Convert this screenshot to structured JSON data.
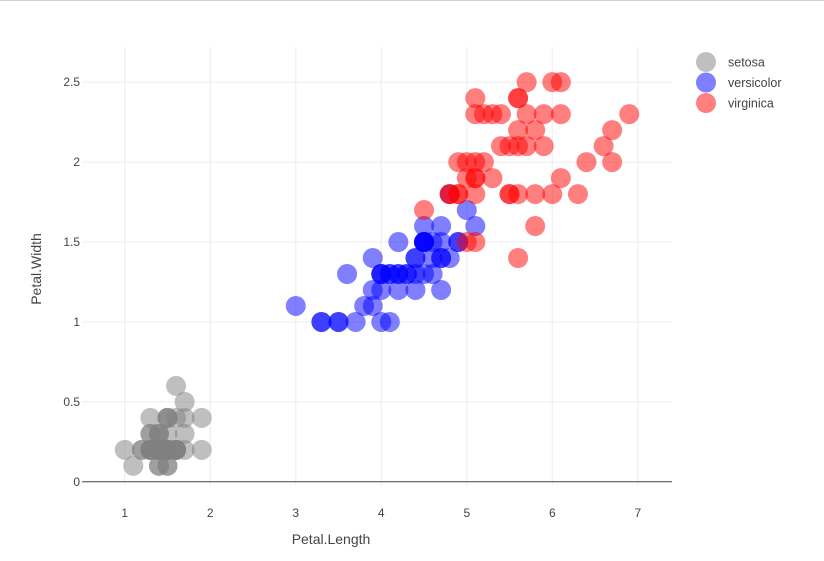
{
  "chart_data": {
    "type": "scatter",
    "title": "",
    "xlabel": "Petal.Length",
    "ylabel": "Petal.Width",
    "xlim": [
      0.5,
      7.4
    ],
    "ylim": [
      -0.02,
      2.72
    ],
    "xticks": [
      1,
      2,
      3,
      4,
      5,
      6,
      7
    ],
    "yticks": [
      0,
      0.5,
      1,
      1.5,
      2,
      2.5
    ],
    "ytick_labels": [
      "0",
      "0.5",
      "1",
      "1.5",
      "2",
      "2.5"
    ],
    "grid": true,
    "legend_position": "top-right",
    "marker_opacity": 0.5,
    "series": [
      {
        "name": "setosa",
        "color": "#808080",
        "points": [
          [
            1.4,
            0.2
          ],
          [
            1.4,
            0.2
          ],
          [
            1.3,
            0.2
          ],
          [
            1.5,
            0.2
          ],
          [
            1.4,
            0.2
          ],
          [
            1.7,
            0.4
          ],
          [
            1.4,
            0.3
          ],
          [
            1.5,
            0.2
          ],
          [
            1.4,
            0.2
          ],
          [
            1.5,
            0.1
          ],
          [
            1.5,
            0.2
          ],
          [
            1.6,
            0.2
          ],
          [
            1.4,
            0.1
          ],
          [
            1.1,
            0.1
          ],
          [
            1.2,
            0.2
          ],
          [
            1.5,
            0.4
          ],
          [
            1.3,
            0.4
          ],
          [
            1.4,
            0.3
          ],
          [
            1.7,
            0.3
          ],
          [
            1.5,
            0.3
          ],
          [
            1.7,
            0.2
          ],
          [
            1.5,
            0.4
          ],
          [
            1.0,
            0.2
          ],
          [
            1.7,
            0.5
          ],
          [
            1.9,
            0.2
          ],
          [
            1.6,
            0.2
          ],
          [
            1.6,
            0.4
          ],
          [
            1.5,
            0.2
          ],
          [
            1.4,
            0.2
          ],
          [
            1.6,
            0.2
          ],
          [
            1.6,
            0.2
          ],
          [
            1.5,
            0.4
          ],
          [
            1.5,
            0.1
          ],
          [
            1.4,
            0.2
          ],
          [
            1.5,
            0.2
          ],
          [
            1.2,
            0.2
          ],
          [
            1.3,
            0.2
          ],
          [
            1.4,
            0.1
          ],
          [
            1.3,
            0.2
          ],
          [
            1.5,
            0.2
          ],
          [
            1.3,
            0.3
          ],
          [
            1.3,
            0.3
          ],
          [
            1.3,
            0.2
          ],
          [
            1.6,
            0.6
          ],
          [
            1.9,
            0.4
          ],
          [
            1.4,
            0.3
          ],
          [
            1.6,
            0.2
          ],
          [
            1.4,
            0.2
          ],
          [
            1.5,
            0.2
          ],
          [
            1.4,
            0.2
          ]
        ]
      },
      {
        "name": "versicolor",
        "color": "#0000ff",
        "points": [
          [
            4.7,
            1.4
          ],
          [
            4.5,
            1.5
          ],
          [
            4.9,
            1.5
          ],
          [
            4.0,
            1.3
          ],
          [
            4.6,
            1.5
          ],
          [
            4.5,
            1.3
          ],
          [
            4.7,
            1.6
          ],
          [
            3.3,
            1.0
          ],
          [
            4.6,
            1.3
          ],
          [
            3.9,
            1.4
          ],
          [
            3.5,
            1.0
          ],
          [
            4.2,
            1.5
          ],
          [
            4.0,
            1.0
          ],
          [
            4.7,
            1.4
          ],
          [
            3.6,
            1.3
          ],
          [
            4.4,
            1.4
          ],
          [
            4.5,
            1.5
          ],
          [
            4.1,
            1.0
          ],
          [
            4.5,
            1.5
          ],
          [
            3.9,
            1.1
          ],
          [
            4.8,
            1.8
          ],
          [
            4.0,
            1.3
          ],
          [
            4.9,
            1.5
          ],
          [
            4.7,
            1.2
          ],
          [
            4.3,
            1.3
          ],
          [
            4.4,
            1.4
          ],
          [
            4.8,
            1.4
          ],
          [
            5.0,
            1.7
          ],
          [
            4.5,
            1.5
          ],
          [
            3.5,
            1.0
          ],
          [
            3.8,
            1.1
          ],
          [
            3.7,
            1.0
          ],
          [
            3.9,
            1.2
          ],
          [
            5.1,
            1.6
          ],
          [
            4.5,
            1.5
          ],
          [
            4.5,
            1.6
          ],
          [
            4.7,
            1.5
          ],
          [
            4.4,
            1.3
          ],
          [
            4.1,
            1.3
          ],
          [
            4.0,
            1.3
          ],
          [
            4.4,
            1.2
          ],
          [
            4.6,
            1.4
          ],
          [
            4.0,
            1.2
          ],
          [
            3.3,
            1.0
          ],
          [
            4.2,
            1.3
          ],
          [
            4.2,
            1.2
          ],
          [
            4.2,
            1.3
          ],
          [
            4.3,
            1.3
          ],
          [
            3.0,
            1.1
          ],
          [
            4.1,
            1.3
          ]
        ]
      },
      {
        "name": "virginica",
        "color": "#ff0000",
        "points": [
          [
            6.0,
            2.5
          ],
          [
            5.1,
            1.9
          ],
          [
            5.9,
            2.1
          ],
          [
            5.6,
            1.8
          ],
          [
            5.8,
            2.2
          ],
          [
            6.6,
            2.1
          ],
          [
            4.5,
            1.7
          ],
          [
            6.3,
            1.8
          ],
          [
            5.8,
            1.8
          ],
          [
            6.1,
            2.5
          ],
          [
            5.1,
            2.0
          ],
          [
            5.3,
            1.9
          ],
          [
            5.5,
            2.1
          ],
          [
            5.0,
            2.0
          ],
          [
            5.1,
            2.4
          ],
          [
            5.3,
            2.3
          ],
          [
            5.5,
            1.8
          ],
          [
            6.7,
            2.2
          ],
          [
            6.9,
            2.3
          ],
          [
            5.0,
            1.5
          ],
          [
            5.7,
            2.3
          ],
          [
            4.9,
            2.0
          ],
          [
            6.7,
            2.0
          ],
          [
            4.9,
            1.8
          ],
          [
            5.7,
            2.1
          ],
          [
            6.0,
            1.8
          ],
          [
            4.8,
            1.8
          ],
          [
            4.9,
            1.8
          ],
          [
            5.6,
            2.1
          ],
          [
            5.8,
            1.6
          ],
          [
            6.1,
            1.9
          ],
          [
            6.4,
            2.0
          ],
          [
            5.6,
            2.2
          ],
          [
            5.1,
            1.5
          ],
          [
            5.6,
            1.4
          ],
          [
            6.1,
            2.3
          ],
          [
            5.6,
            2.4
          ],
          [
            5.5,
            1.8
          ],
          [
            4.8,
            1.8
          ],
          [
            5.4,
            2.1
          ],
          [
            5.6,
            2.4
          ],
          [
            5.1,
            2.3
          ],
          [
            5.1,
            1.9
          ],
          [
            5.9,
            2.3
          ],
          [
            5.7,
            2.5
          ],
          [
            5.2,
            2.3
          ],
          [
            5.0,
            1.9
          ],
          [
            5.2,
            2.0
          ],
          [
            5.4,
            2.3
          ],
          [
            5.1,
            1.8
          ]
        ]
      }
    ]
  }
}
